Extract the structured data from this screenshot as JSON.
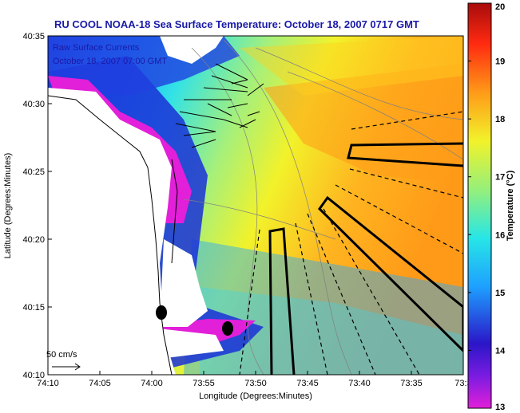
{
  "title": "RU COOL  NOAA-18  Sea Surface Temperature:  October 18, 2007 0717 GMT",
  "legend": {
    "line1": "Raw Surface Currents",
    "line2": "October 18, 2007 07:00 GMT"
  },
  "scale_label": "50 cm/s",
  "x_axis": {
    "label": "Longitude (Degrees:Minutes)",
    "ticks": [
      "74:10",
      "74:05",
      "74:00",
      "73:55",
      "73:50",
      "73:45",
      "73:40",
      "73:35",
      "73:3"
    ]
  },
  "y_axis": {
    "label": "Latitude (Degrees:Minutes)",
    "ticks": [
      "40:35",
      "40:30",
      "40:25",
      "40:20",
      "40:15",
      "40:10"
    ]
  },
  "colorbar": {
    "label": "Temperature (°C)",
    "ticks": [
      "20",
      "19",
      "18",
      "17",
      "16",
      "15",
      "14",
      "13"
    ],
    "min": 13,
    "max": 20,
    "colors": [
      "#e21fd9",
      "#2a16c8",
      "#1ea0ff",
      "#27e6e6",
      "#96f07a",
      "#f2f22a",
      "#ff9a18",
      "#ff2a10",
      "#a80c0c"
    ]
  }
}
